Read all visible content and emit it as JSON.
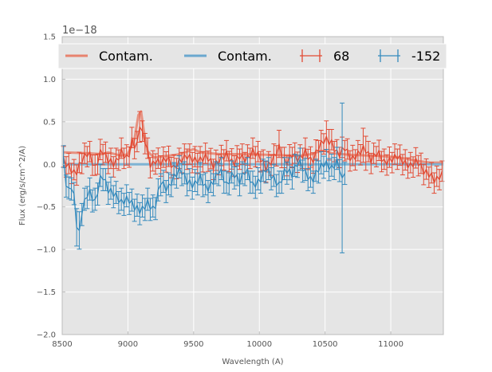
{
  "chart_data": {
    "type": "line",
    "title": "",
    "xlabel": "Wavelength (A)",
    "ylabel": "Flux (erg/s/cm^2/A)",
    "offset_text": "1e−18",
    "xlim": [
      8500,
      11400
    ],
    "ylim": [
      -2.0,
      1.5
    ],
    "x_ticks": [
      8500,
      9000,
      9500,
      10000,
      10500,
      11000
    ],
    "x_tick_labels": [
      "8500",
      "9000",
      "9500",
      "10000",
      "10500",
      "11000"
    ],
    "y_ticks": [
      -2.0,
      -1.5,
      -1.0,
      -0.5,
      0.0,
      0.5,
      1.0,
      1.5
    ],
    "y_tick_labels": [
      "−2.0",
      "−1.5",
      "−1.0",
      "−0.5",
      "0.0",
      "0.5",
      "1.0",
      "1.5"
    ],
    "grid": true,
    "legend_position": "top",
    "legend": [
      {
        "label": "Contam.",
        "kind": "line",
        "color": "#e8836f"
      },
      {
        "label": "Contam.",
        "kind": "line",
        "color": "#6aa8cf"
      },
      {
        "label": "68",
        "kind": "errorbar",
        "color": "#e24a33"
      },
      {
        "label": "-152",
        "kind": "errorbar",
        "color": "#348abd"
      }
    ],
    "colors": {
      "plot_bg": "#e5e5e5",
      "grid": "#ffffff",
      "frame": "#bcbcbc",
      "red": "#e24a33",
      "blue": "#348abd",
      "red_contam": "#e8836f",
      "blue_contam": "#6aa8cf",
      "legend_bg": "#e5e5e5"
    },
    "series": [
      {
        "name": "68",
        "color": "#e24a33",
        "sigma_base": 0.12,
        "sigma_spikes": [
          {
            "x": 9090,
            "sigma": 0.18
          },
          {
            "x": 10150,
            "sigma": 0.16
          },
          {
            "x": 10520,
            "sigma": 0.18
          },
          {
            "x": 10800,
            "sigma": 0.2
          }
        ],
        "anchors": [
          [
            8510,
            0.05
          ],
          [
            8560,
            -0.05
          ],
          [
            8600,
            -0.12
          ],
          [
            8650,
            0.05
          ],
          [
            8700,
            0.15
          ],
          [
            8750,
            -0.05
          ],
          [
            8800,
            0.18
          ],
          [
            8850,
            0.05
          ],
          [
            8900,
            0.0
          ],
          [
            8950,
            0.15
          ],
          [
            9000,
            0.05
          ],
          [
            9040,
            0.35
          ],
          [
            9060,
            0.1
          ],
          [
            9090,
            0.48
          ],
          [
            9110,
            0.35
          ],
          [
            9140,
            0.25
          ],
          [
            9160,
            0.05
          ],
          [
            9180,
            -0.05
          ],
          [
            9200,
            0.05
          ],
          [
            9250,
            0.02
          ],
          [
            9300,
            0.08
          ],
          [
            9350,
            -0.05
          ],
          [
            9400,
            0.05
          ],
          [
            9450,
            0.1
          ],
          [
            9500,
            0.05
          ],
          [
            9550,
            0.05
          ],
          [
            9600,
            0.1
          ],
          [
            9650,
            -0.02
          ],
          [
            9700,
            0.05
          ],
          [
            9750,
            0.12
          ],
          [
            9800,
            0.0
          ],
          [
            9850,
            0.1
          ],
          [
            9900,
            0.05
          ],
          [
            9950,
            0.15
          ],
          [
            10000,
            0.1
          ],
          [
            10050,
            -0.05
          ],
          [
            10100,
            0.05
          ],
          [
            10150,
            0.2
          ],
          [
            10200,
            0.0
          ],
          [
            10250,
            0.12
          ],
          [
            10300,
            0.05
          ],
          [
            10350,
            0.15
          ],
          [
            10400,
            0.02
          ],
          [
            10450,
            0.2
          ],
          [
            10500,
            0.3
          ],
          [
            10550,
            0.25
          ],
          [
            10600,
            0.1
          ],
          [
            10650,
            0.2
          ],
          [
            10700,
            0.05
          ],
          [
            10750,
            0.12
          ],
          [
            10800,
            0.2
          ],
          [
            10850,
            0.05
          ],
          [
            10900,
            0.15
          ],
          [
            10950,
            0.02
          ],
          [
            11000,
            0.05
          ],
          [
            11050,
            0.1
          ],
          [
            11100,
            0.02
          ],
          [
            11150,
            -0.02
          ],
          [
            11200,
            0.05
          ],
          [
            11250,
            -0.08
          ],
          [
            11300,
            -0.12
          ],
          [
            11340,
            -0.2
          ],
          [
            11380,
            -0.12
          ]
        ]
      },
      {
        "name": "-152",
        "color": "#348abd",
        "sigma_base": 0.13,
        "sigma_spikes": [
          {
            "x": 8620,
            "sigma": 0.22
          },
          {
            "x": 10630,
            "sigma": 0.88
          }
        ],
        "anchors": [
          [
            8510,
            0.05
          ],
          [
            8540,
            -0.35
          ],
          [
            8570,
            -0.25
          ],
          [
            8600,
            -0.45
          ],
          [
            8620,
            -0.95
          ],
          [
            8650,
            -0.55
          ],
          [
            8700,
            -0.3
          ],
          [
            8750,
            -0.45
          ],
          [
            8800,
            -0.1
          ],
          [
            8850,
            -0.3
          ],
          [
            8900,
            -0.35
          ],
          [
            8950,
            -0.45
          ],
          [
            9000,
            -0.4
          ],
          [
            9050,
            -0.5
          ],
          [
            9100,
            -0.55
          ],
          [
            9150,
            -0.45
          ],
          [
            9200,
            -0.55
          ],
          [
            9250,
            -0.2
          ],
          [
            9300,
            -0.3
          ],
          [
            9350,
            -0.15
          ],
          [
            9400,
            -0.05
          ],
          [
            9450,
            -0.2
          ],
          [
            9500,
            -0.25
          ],
          [
            9550,
            -0.15
          ],
          [
            9600,
            -0.3
          ],
          [
            9650,
            -0.2
          ],
          [
            9700,
            -0.05
          ],
          [
            9750,
            -0.25
          ],
          [
            9800,
            -0.1
          ],
          [
            9850,
            -0.2
          ],
          [
            9900,
            -0.05
          ],
          [
            9950,
            -0.25
          ],
          [
            10000,
            -0.2
          ],
          [
            10050,
            -0.05
          ],
          [
            10100,
            -0.15
          ],
          [
            10150,
            -0.25
          ],
          [
            10200,
            -0.05
          ],
          [
            10250,
            -0.12
          ],
          [
            10300,
            0.05
          ],
          [
            10350,
            -0.1
          ],
          [
            10400,
            -0.2
          ],
          [
            10450,
            -0.05
          ],
          [
            10500,
            0.02
          ],
          [
            10550,
            -0.05
          ],
          [
            10600,
            0.05
          ],
          [
            10630,
            -0.2
          ],
          [
            10660,
            0.0
          ]
        ]
      }
    ],
    "contamination": [
      {
        "name": "Contam.",
        "color": "#e8836f",
        "points": [
          [
            8510,
            0.14
          ],
          [
            8700,
            0.13
          ],
          [
            8800,
            0.12
          ],
          [
            8850,
            0.14
          ],
          [
            8950,
            0.1
          ],
          [
            9000,
            0.12
          ],
          [
            9050,
            0.3
          ],
          [
            9080,
            0.58
          ],
          [
            9100,
            0.62
          ],
          [
            9120,
            0.4
          ],
          [
            9150,
            0.15
          ],
          [
            9200,
            0.08
          ],
          [
            9300,
            0.1
          ],
          [
            9400,
            0.12
          ],
          [
            9450,
            0.15
          ],
          [
            9500,
            0.18
          ],
          [
            9550,
            0.14
          ],
          [
            9700,
            0.12
          ],
          [
            9900,
            0.12
          ],
          [
            10100,
            0.11
          ],
          [
            10300,
            0.1
          ],
          [
            10400,
            0.12
          ],
          [
            10450,
            0.15
          ],
          [
            10500,
            0.16
          ],
          [
            10550,
            0.13
          ],
          [
            10700,
            0.11
          ],
          [
            10900,
            0.1
          ],
          [
            11000,
            0.09
          ],
          [
            11100,
            0.07
          ],
          [
            11200,
            0.04
          ],
          [
            11300,
            0.02
          ],
          [
            11400,
            0.02
          ]
        ]
      },
      {
        "name": "Contam.",
        "color": "#6aa8cf",
        "points": [
          [
            8510,
            0.0
          ],
          [
            8700,
            0.0
          ],
          [
            9000,
            0.0
          ],
          [
            9500,
            0.0
          ],
          [
            10000,
            0.0
          ],
          [
            10500,
            0.0
          ],
          [
            11000,
            0.0
          ],
          [
            11400,
            0.0
          ]
        ]
      }
    ],
    "sampling": {
      "red_start": 8510,
      "red_end": 11390,
      "red_step": 20,
      "blue_start": 8510,
      "blue_end": 10660,
      "blue_step": 20
    }
  }
}
